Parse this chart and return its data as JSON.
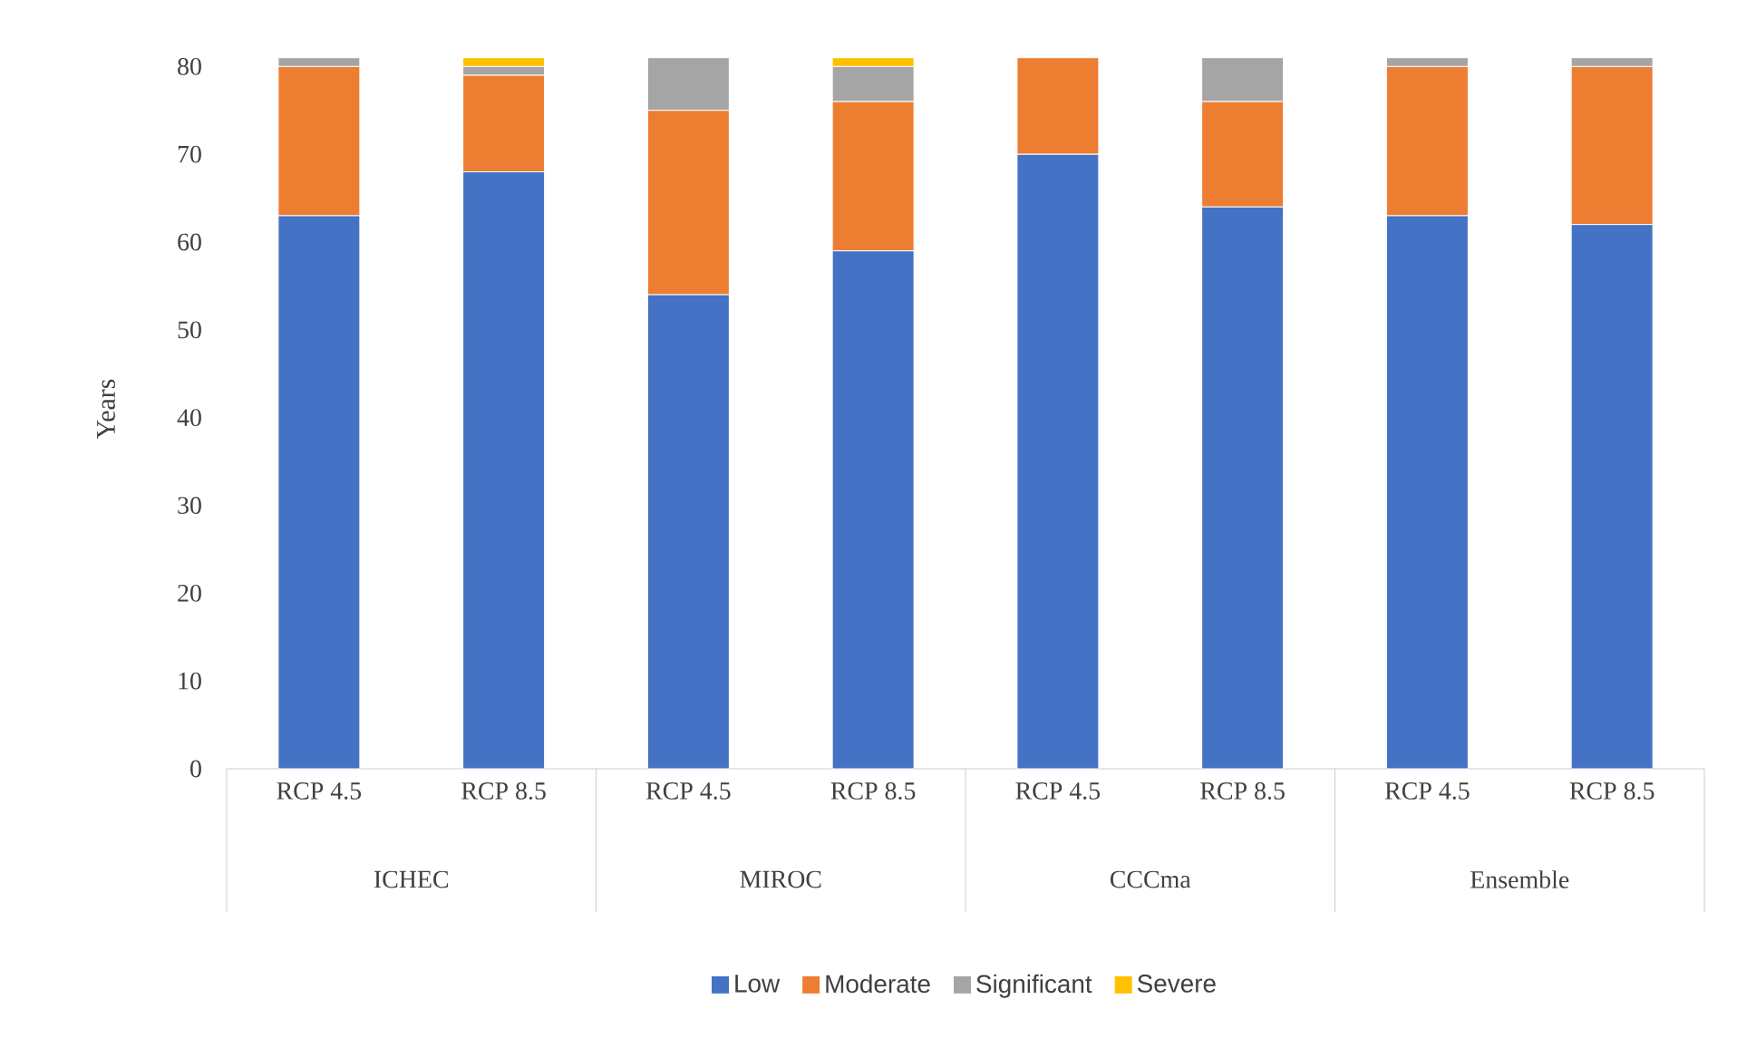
{
  "chart_data": {
    "type": "bar",
    "stacked": true,
    "ylabel": "Years",
    "categories": [
      "RCP 4.5",
      "RCP 8.5",
      "RCP 4.5",
      "RCP 8.5",
      "RCP 4.5",
      "RCP 8.5",
      "RCP 4.5",
      "RCP 8.5"
    ],
    "annotations": [
      "ICHEC",
      "MIROC",
      "CCCma",
      "Ensemble"
    ],
    "series": [
      {
        "name": "Low",
        "color": "#4472c4",
        "values": [
          63,
          68,
          54,
          59,
          70,
          64,
          63,
          62
        ]
      },
      {
        "name": "Moderate",
        "color": "#ed7d31",
        "values": [
          17,
          11,
          21,
          17,
          11,
          12,
          17,
          18
        ]
      },
      {
        "name": "Significant",
        "color": "#a5a5a5",
        "values": [
          1,
          1,
          6,
          4,
          0,
          5,
          1,
          1
        ]
      },
      {
        "name": "Severe",
        "color": "#ffc000",
        "values": [
          0,
          1,
          0,
          1,
          0,
          0,
          0,
          0
        ]
      }
    ],
    "ylim": [
      0,
      82
    ],
    "yticks": [
      0,
      10,
      20,
      30,
      40,
      50,
      60,
      70,
      80
    ],
    "legend": "bottom"
  }
}
